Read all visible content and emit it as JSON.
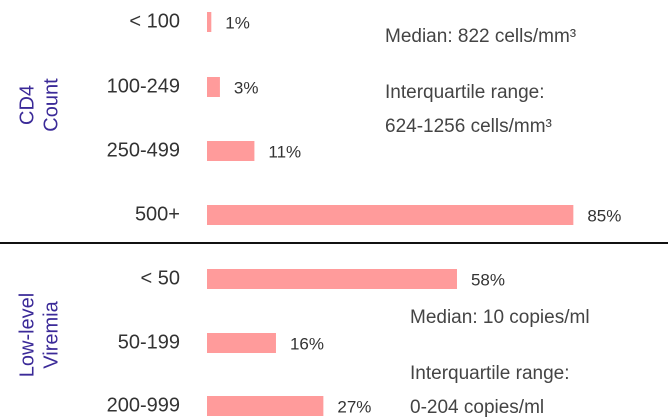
{
  "chart_data": [
    {
      "type": "bar",
      "ylabel": [
        "CD4",
        "Count"
      ],
      "categories": [
        "< 100",
        "100-249",
        "250-499",
        "500+"
      ],
      "values": [
        1,
        3,
        11,
        85
      ],
      "value_labels": [
        "1%",
        "3%",
        "11%",
        "85%"
      ],
      "color": "#ff9b9b",
      "annotations": [
        [
          "Median: 822 cells/mm³"
        ],
        [
          "Interquartile range:",
          "624-1256 cells/mm³"
        ]
      ]
    },
    {
      "type": "bar",
      "ylabel": [
        "Low-level",
        "Viremia"
      ],
      "categories": [
        "< 50",
        "50-199",
        "200-999"
      ],
      "values": [
        58,
        16,
        27
      ],
      "value_labels": [
        "58%",
        "16%",
        "27%"
      ],
      "color": "#ff9b9b",
      "annotations": [
        [
          "Median: 10 copies/ml"
        ],
        [
          "Interquartile range:",
          "0-204 copies/ml"
        ]
      ]
    }
  ]
}
